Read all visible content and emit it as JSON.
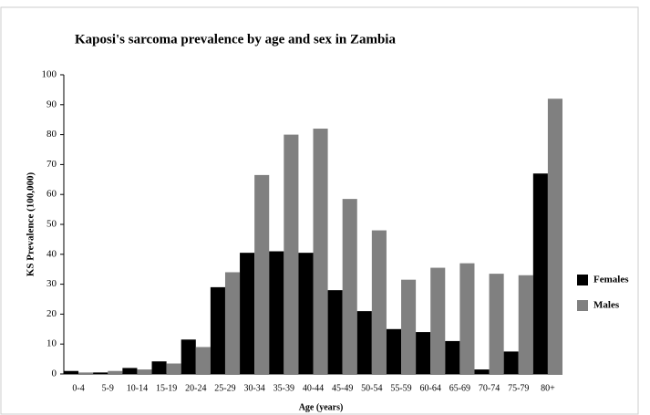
{
  "chart_data": {
    "type": "bar",
    "title": "Kaposi's sarcoma prevalence by age and sex in Zambia",
    "x_label": "Age (years)",
    "y_label": "KS Prevalence (100,000)",
    "categories": [
      "0-4",
      "5-9",
      "10-14",
      "15-19",
      "20-24",
      "25-29",
      "30-34",
      "35-39",
      "40-44",
      "45-49",
      "50-54",
      "55-59",
      "60-64",
      "65-69",
      "70-74",
      "75-79",
      "80+"
    ],
    "series": [
      {
        "name": "Females",
        "color": "#000000",
        "values": [
          1,
          0.5,
          2,
          4.2,
          11.5,
          29,
          40.5,
          41,
          40.5,
          28,
          21,
          15,
          14,
          11,
          1.5,
          7.5,
          67
        ]
      },
      {
        "name": "Males",
        "color": "#808080",
        "values": [
          0.5,
          1,
          1.5,
          3.5,
          9,
          34,
          66.5,
          80,
          82,
          58.5,
          48,
          31.5,
          35.5,
          37,
          33.5,
          33,
          92
        ]
      }
    ],
    "ylim": [
      0,
      100
    ],
    "yticks": [
      0,
      10,
      20,
      30,
      40,
      50,
      60,
      70,
      80,
      90,
      100
    ],
    "grid": false,
    "legend": "right"
  }
}
